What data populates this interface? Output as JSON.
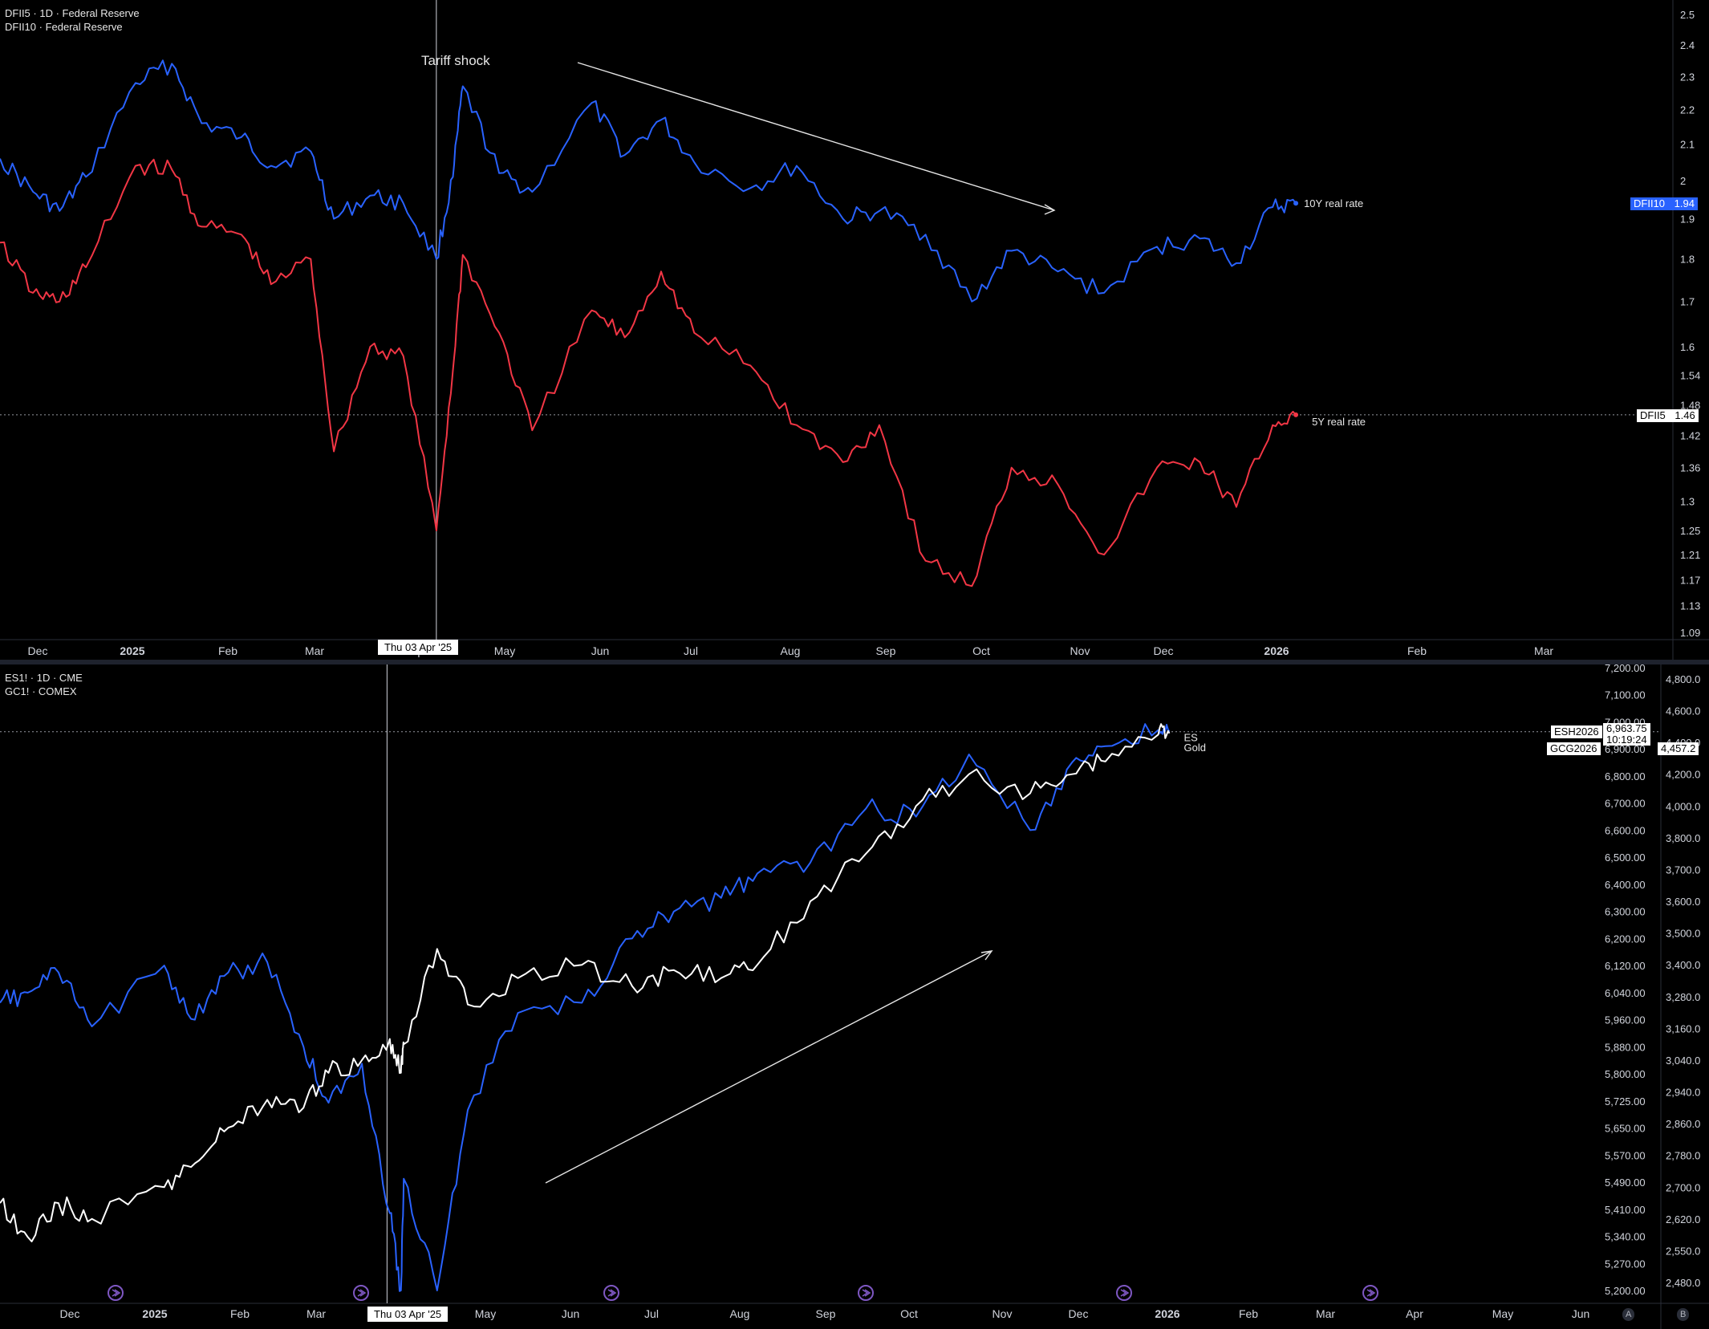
{
  "top_pane": {
    "legend": [
      "DFII5 · 1D · Federal Reserve",
      "DFII10 · Federal Reserve"
    ],
    "annotation": "Tariff shock",
    "crosshair_date": "Thu 03 Apr '25",
    "price_tags": [
      {
        "symbol": "DFII10",
        "value": "1.94",
        "color": "#2962ff"
      },
      {
        "symbol": "DFII5",
        "value": "1.46",
        "color": "#ffffff"
      }
    ],
    "series_labels": [
      "10Y real rate",
      "5Y real rate"
    ]
  },
  "bottom_pane": {
    "legend": [
      "ES1! · 1D · CME",
      "GC1! · COMEX"
    ],
    "crosshair_date": "Thu 03 Apr '25",
    "price_tags": [
      {
        "symbol": "ESH2026",
        "value": "6,963.75",
        "extra": "10:19:24"
      },
      {
        "symbol": "GCG2026",
        "value": "4,457.2"
      }
    ],
    "series_labels": [
      "ES",
      "Gold"
    ],
    "corner_buttons": [
      "A",
      "B"
    ]
  },
  "chart_data": [
    {
      "type": "line",
      "title": "",
      "x_axis_labels": [
        "Dec",
        "2025",
        "Feb",
        "Mar",
        "Apr",
        "May",
        "Jun",
        "Jul",
        "Aug",
        "Sep",
        "Oct",
        "Nov",
        "Dec",
        "2026",
        "Feb",
        "Mar"
      ],
      "y_axis_scale": "log",
      "y_ticks": [
        "2.5",
        "2.4",
        "2.3",
        "2.2",
        "2.1",
        "2",
        "1.9",
        "1.8",
        "1.7",
        "1.6",
        "1.54",
        "1.48",
        "1.42",
        "1.36",
        "1.3",
        "1.25",
        "1.21",
        "1.17",
        "1.13",
        "1.09"
      ],
      "ylim": [
        1.09,
        2.55
      ],
      "series": [
        {
          "name": "10Y real rate",
          "color": "#2962ff",
          "x": [
            "2024-11-22",
            "2024-12-02",
            "2024-12-10",
            "2024-12-18",
            "2025-01-02",
            "2025-01-13",
            "2025-01-22",
            "2025-02-03",
            "2025-02-12",
            "2025-02-24",
            "2025-03-03",
            "2025-03-14",
            "2025-03-24",
            "2025-04-03",
            "2025-04-08",
            "2025-04-11",
            "2025-04-22",
            "2025-05-02",
            "2025-05-20",
            "2025-05-30",
            "2025-06-10",
            "2025-06-20",
            "2025-07-07",
            "2025-07-21",
            "2025-08-04",
            "2025-08-15",
            "2025-08-29",
            "2025-09-12",
            "2025-09-24",
            "2025-10-08",
            "2025-10-22",
            "2025-11-07",
            "2025-11-20",
            "2025-12-01",
            "2025-12-12",
            "2025-12-19"
          ],
          "values": [
            2.06,
            1.97,
            1.92,
            2.01,
            2.28,
            2.34,
            2.16,
            2.12,
            2.04,
            2.08,
            1.9,
            1.96,
            1.94,
            1.8,
            2.01,
            2.27,
            2.02,
            1.97,
            2.22,
            2.07,
            2.17,
            2.05,
            1.98,
            2.04,
            1.9,
            1.92,
            1.86,
            1.7,
            1.82,
            1.77,
            1.72,
            1.83,
            1.85,
            1.79,
            1.93,
            1.94
          ]
        },
        {
          "name": "5Y real rate",
          "color": "#f23645",
          "x": [
            "2024-11-22",
            "2024-12-02",
            "2024-12-10",
            "2024-12-18",
            "2025-01-02",
            "2025-01-13",
            "2025-01-22",
            "2025-02-03",
            "2025-02-12",
            "2025-02-24",
            "2025-03-03",
            "2025-03-14",
            "2025-03-24",
            "2025-04-03",
            "2025-04-08",
            "2025-04-11",
            "2025-04-22",
            "2025-05-02",
            "2025-05-20",
            "2025-05-30",
            "2025-06-10",
            "2025-06-20",
            "2025-07-07",
            "2025-07-21",
            "2025-08-04",
            "2025-08-15",
            "2025-08-29",
            "2025-09-12",
            "2025-09-24",
            "2025-10-08",
            "2025-10-22",
            "2025-11-07",
            "2025-11-20",
            "2025-12-01",
            "2025-12-12",
            "2025-12-19"
          ],
          "values": [
            1.84,
            1.72,
            1.7,
            1.78,
            2.04,
            2.03,
            1.88,
            1.86,
            1.74,
            1.8,
            1.39,
            1.6,
            1.58,
            1.25,
            1.55,
            1.81,
            1.63,
            1.43,
            1.68,
            1.62,
            1.77,
            1.63,
            1.56,
            1.44,
            1.37,
            1.44,
            1.2,
            1.16,
            1.36,
            1.33,
            1.21,
            1.36,
            1.37,
            1.29,
            1.44,
            1.46
          ]
        }
      ],
      "ref_line": 1.46
    },
    {
      "type": "line",
      "title": "",
      "x_axis_labels": [
        "Dec",
        "2025",
        "Feb",
        "Mar",
        "Apr",
        "May",
        "Jun",
        "Jul",
        "Aug",
        "Sep",
        "Oct",
        "Nov",
        "Dec",
        "2026",
        "Feb",
        "Mar",
        "Apr",
        "May",
        "Jun"
      ],
      "y_ticks_left": [
        "7,200.00",
        "7,100.00",
        "7,000.00",
        "6,900.00",
        "6,800.00",
        "6,700.00",
        "6,600.00",
        "6,500.00",
        "6,400.00",
        "6,300.00",
        "6,200.00",
        "6,120.00",
        "6,040.00",
        "5,960.00",
        "5,880.00",
        "5,800.00",
        "5,725.00",
        "5,650.00",
        "5,570.00",
        "5,490.00",
        "5,410.00",
        "5,340.00",
        "5,270.00",
        "5,200.00"
      ],
      "y_ticks_right": [
        "4,800.0",
        "4,600.0",
        "4,400.0",
        "4,200.0",
        "4,000.0",
        "3,800.0",
        "3,700.0",
        "3,600.0",
        "3,500.0",
        "3,400.0",
        "3,280.0",
        "3,160.0",
        "3,040.0",
        "2,940.0",
        "2,860.0",
        "2,780.0",
        "2,700.0",
        "2,620.0",
        "2,550.0",
        "2,480.0"
      ],
      "series": [
        {
          "name": "ES",
          "color": "#2962ff",
          "axis": "left",
          "x": [
            "2024-11-15",
            "2024-11-25",
            "2024-12-06",
            "2024-12-18",
            "2025-01-13",
            "2025-01-24",
            "2025-02-05",
            "2025-02-19",
            "2025-03-04",
            "2025-03-13",
            "2025-03-25",
            "2025-04-04",
            "2025-04-08",
            "2025-04-09",
            "2025-04-21",
            "2025-05-02",
            "2025-05-20",
            "2025-06-12",
            "2025-06-30",
            "2025-07-15",
            "2025-08-01",
            "2025-08-14",
            "2025-09-02",
            "2025-09-22",
            "2025-10-10",
            "2025-10-29",
            "2025-11-20",
            "2025-12-05",
            "2025-12-17",
            "2026-01-05",
            "2026-01-09"
          ],
          "values": [
            6010,
            6040,
            6100,
            5940,
            6120,
            5960,
            6100,
            6130,
            5880,
            5720,
            5830,
            5400,
            5070,
            5500,
            5180,
            5700,
            5980,
            6010,
            6200,
            6300,
            6350,
            6440,
            6480,
            6680,
            6650,
            6880,
            6600,
            6850,
            6910,
            6970,
            6963.75
          ]
        },
        {
          "name": "Gold",
          "color": "#ffffff",
          "axis": "right",
          "x": [
            "2024-11-15",
            "2024-11-25",
            "2024-12-06",
            "2024-12-18",
            "2025-01-13",
            "2025-01-24",
            "2025-02-05",
            "2025-02-19",
            "2025-03-04",
            "2025-03-13",
            "2025-03-25",
            "2025-04-04",
            "2025-04-08",
            "2025-04-09",
            "2025-04-21",
            "2025-05-02",
            "2025-05-20",
            "2025-06-12",
            "2025-06-30",
            "2025-07-15",
            "2025-08-01",
            "2025-08-14",
            "2025-09-02",
            "2025-09-22",
            "2025-10-10",
            "2025-10-29",
            "2025-11-20",
            "2025-12-05",
            "2025-12-17",
            "2026-01-05",
            "2026-01-09"
          ],
          "values": [
            2660,
            2580,
            2660,
            2620,
            2700,
            2760,
            2850,
            2920,
            2900,
            3000,
            3040,
            3120,
            3000,
            3100,
            3450,
            3250,
            3350,
            3400,
            3320,
            3380,
            3350,
            3400,
            3600,
            3750,
            4000,
            4200,
            4080,
            4200,
            4280,
            4450,
            4457.2
          ]
        }
      ],
      "ref_line_left": 6963.75
    }
  ]
}
